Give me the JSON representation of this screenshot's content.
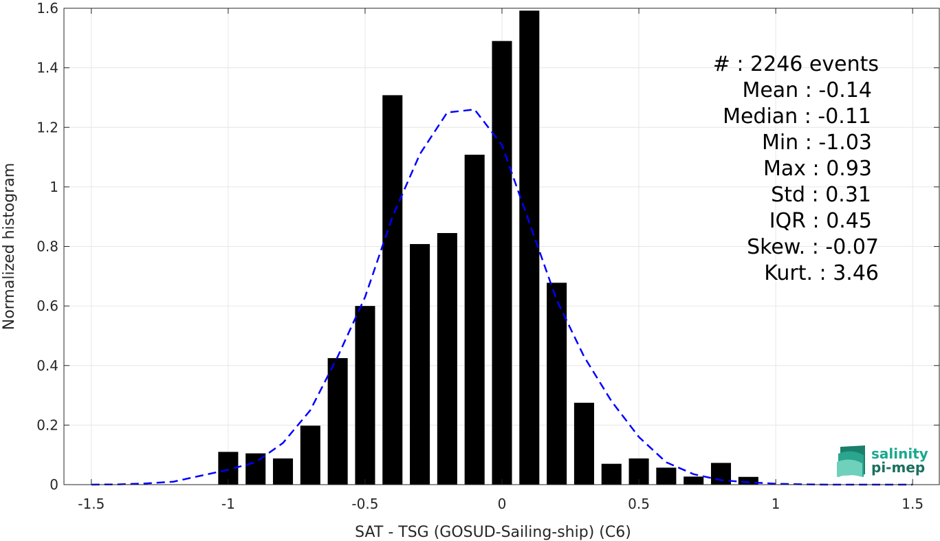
{
  "chart_data": {
    "type": "bar",
    "xlabel": "SAT - TSG (GOSUD-Sailing-ship) (C6)",
    "ylabel": "Normalized histogram",
    "xlim": [
      -1.6,
      1.6
    ],
    "ylim": [
      0,
      1.6
    ],
    "xticks": [
      -1.5,
      -1,
      -0.5,
      0,
      0.5,
      1,
      1.5
    ],
    "xtick_labels": [
      "-1.5",
      "-1",
      "-0.5",
      "0",
      "0.5",
      "1",
      "1.5"
    ],
    "yticks": [
      0,
      0.2,
      0.4,
      0.6,
      0.8,
      1,
      1.2,
      1.4,
      1.6
    ],
    "ytick_labels": [
      "0",
      "0.2",
      "0.4",
      "0.6",
      "0.8",
      "1",
      "1.2",
      "1.4",
      "1.6"
    ],
    "grid": true,
    "bar_color": "#000000",
    "bar_width": 0.073,
    "bars": {
      "x": [
        -1.0,
        -0.9,
        -0.8,
        -0.7,
        -0.6,
        -0.5,
        -0.4,
        -0.3,
        -0.2,
        -0.1,
        0.0,
        0.1,
        0.2,
        0.3,
        0.4,
        0.5,
        0.6,
        0.7,
        0.8,
        0.9
      ],
      "values": [
        0.11,
        0.105,
        0.088,
        0.198,
        0.425,
        0.6,
        1.308,
        0.808,
        0.845,
        1.108,
        1.49,
        1.592,
        0.678,
        0.275,
        0.07,
        0.088,
        0.057,
        0.027,
        0.073,
        0.026
      ]
    },
    "fit_curve": {
      "style": "dashed",
      "color": "#0000ff",
      "x": [
        -1.5,
        -1.4,
        -1.3,
        -1.2,
        -1.1,
        -1.0,
        -0.9,
        -0.8,
        -0.7,
        -0.6,
        -0.5,
        -0.4,
        -0.3,
        -0.2,
        -0.1,
        0.0,
        0.1,
        0.2,
        0.3,
        0.4,
        0.5,
        0.6,
        0.7,
        0.8,
        0.9,
        1.0,
        1.1,
        1.2,
        1.3,
        1.4,
        1.5
      ],
      "y": [
        0.0,
        0.001,
        0.004,
        0.01,
        0.03,
        0.05,
        0.075,
        0.14,
        0.25,
        0.43,
        0.63,
        0.9,
        1.11,
        1.25,
        1.26,
        1.14,
        0.88,
        0.62,
        0.43,
        0.28,
        0.16,
        0.075,
        0.035,
        0.015,
        0.008,
        0.003,
        0.001,
        0.0,
        0.0,
        0.0,
        0.0
      ]
    }
  },
  "stats": [
    "#  : 2246 events",
    "Mean : -0.14",
    "Median : -0.11",
    "Min : -1.03",
    "Max : 0.93",
    "Std : 0.31",
    "IQR : 0.45",
    "Skew. : -0.07",
    "Kurt. : 3.46"
  ],
  "logo": {
    "line1": "salinity",
    "line2": "pi-mep",
    "color1": "#1aa88f",
    "color2": "#1b6f5f"
  }
}
